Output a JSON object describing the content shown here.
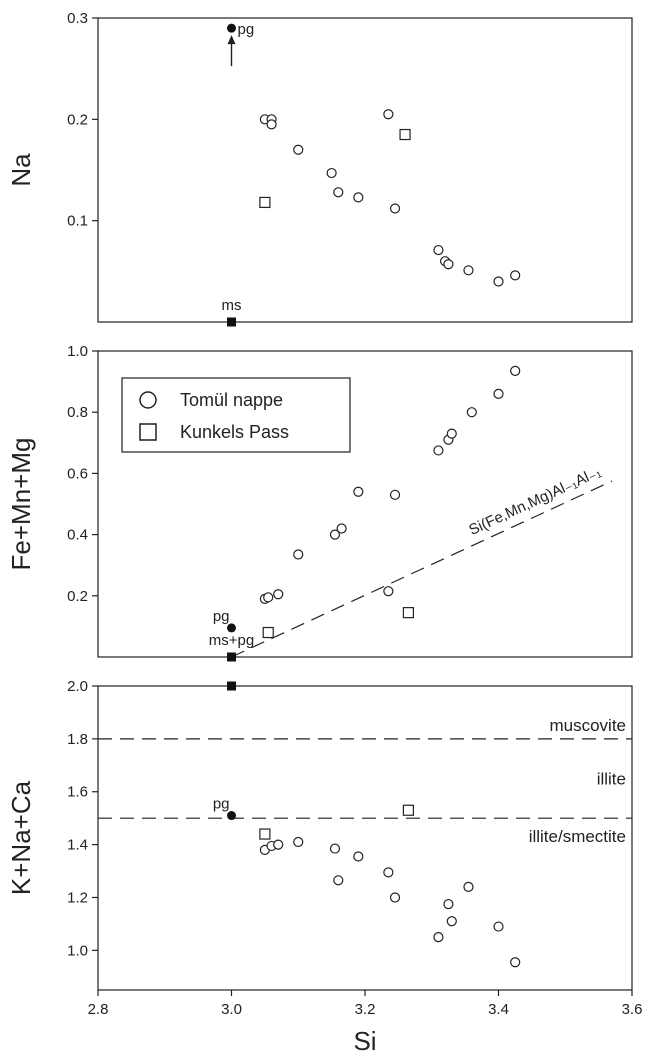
{
  "chart_data": [
    {
      "type": "scatter",
      "ylabel": "Na",
      "xlim": [
        2.8,
        3.6
      ],
      "ylim": [
        0.0,
        0.3
      ],
      "yticks": [
        "0.1",
        "0.2",
        "0.3"
      ],
      "series": [
        {
          "name": "Tomül nappe",
          "marker": "open-circle",
          "points": [
            [
              3.05,
              0.2
            ],
            [
              3.06,
              0.2
            ],
            [
              3.06,
              0.195
            ],
            [
              3.1,
              0.17
            ],
            [
              3.15,
              0.147
            ],
            [
              3.16,
              0.128
            ],
            [
              3.19,
              0.123
            ],
            [
              3.235,
              0.205
            ],
            [
              3.245,
              0.112
            ],
            [
              3.31,
              0.071
            ],
            [
              3.32,
              0.06
            ],
            [
              3.325,
              0.057
            ],
            [
              3.355,
              0.051
            ],
            [
              3.4,
              0.04
            ],
            [
              3.425,
              0.046
            ]
          ]
        },
        {
          "name": "Kunkels Pass",
          "marker": "open-square",
          "points": [
            [
              3.05,
              0.118
            ],
            [
              3.26,
              0.185
            ]
          ]
        }
      ],
      "refs": [
        {
          "label": "pg",
          "x": 3.0,
          "y": 0.29,
          "marker": "filled-circle",
          "arrow": true
        },
        {
          "label": "ms",
          "x": 3.0,
          "y": 0.0,
          "marker": "filled-square"
        }
      ]
    },
    {
      "type": "scatter",
      "ylabel": "Fe+Mn+Mg",
      "xlim": [
        2.8,
        3.6
      ],
      "ylim": [
        0.0,
        1.0
      ],
      "yticks": [
        "0.2",
        "0.4",
        "0.6",
        "0.8",
        "1.0"
      ],
      "series": [
        {
          "name": "Tomül nappe",
          "marker": "open-circle",
          "points": [
            [
              3.05,
              0.19
            ],
            [
              3.055,
              0.195
            ],
            [
              3.07,
              0.205
            ],
            [
              3.1,
              0.335
            ],
            [
              3.155,
              0.4
            ],
            [
              3.165,
              0.42
            ],
            [
              3.19,
              0.54
            ],
            [
              3.235,
              0.215
            ],
            [
              3.245,
              0.53
            ],
            [
              3.31,
              0.675
            ],
            [
              3.325,
              0.71
            ],
            [
              3.33,
              0.73
            ],
            [
              3.36,
              0.8
            ],
            [
              3.4,
              0.86
            ],
            [
              3.425,
              0.935
            ]
          ]
        },
        {
          "name": "Kunkels Pass",
          "marker": "open-square",
          "points": [
            [
              3.055,
              0.08
            ],
            [
              3.265,
              0.145
            ]
          ]
        }
      ],
      "refs": [
        {
          "label": "pg",
          "x": 3.0,
          "y": 0.095,
          "marker": "filled-circle"
        },
        {
          "label": "ms+pg",
          "x": 3.0,
          "y": 0.0,
          "marker": "filled-square"
        }
      ],
      "line": {
        "label": "Si(Fe,Mn,Mg)Al₋₁Al₋₁",
        "from": [
          3.0,
          0.0
        ],
        "to": [
          3.57,
          0.575
        ],
        "style": "dashed"
      }
    },
    {
      "type": "scatter",
      "ylabel": "K+Na+Ca",
      "xlabel": "Si",
      "xlim": [
        2.8,
        3.6
      ],
      "ylim": [
        0.85,
        2.0
      ],
      "xticks": [
        "2.8",
        "3.0",
        "3.2",
        "3.4",
        "3.6"
      ],
      "yticks": [
        "1.0",
        "1.2",
        "1.4",
        "1.6",
        "1.8",
        "2.0"
      ],
      "series": [
        {
          "name": "Tomül nappe",
          "marker": "open-circle",
          "points": [
            [
              3.05,
              1.38
            ],
            [
              3.06,
              1.395
            ],
            [
              3.07,
              1.4
            ],
            [
              3.1,
              1.41
            ],
            [
              3.155,
              1.385
            ],
            [
              3.16,
              1.265
            ],
            [
              3.19,
              1.355
            ],
            [
              3.235,
              1.295
            ],
            [
              3.245,
              1.2
            ],
            [
              3.31,
              1.05
            ],
            [
              3.325,
              1.175
            ],
            [
              3.33,
              1.11
            ],
            [
              3.355,
              1.24
            ],
            [
              3.4,
              1.09
            ],
            [
              3.425,
              0.955
            ]
          ]
        },
        {
          "name": "Kunkels Pass",
          "marker": "open-square",
          "points": [
            [
              3.05,
              1.44
            ],
            [
              3.265,
              1.53
            ]
          ]
        }
      ],
      "refs": [
        {
          "label": "pg",
          "x": 3.0,
          "y": 1.51,
          "marker": "filled-circle"
        },
        {
          "label": "",
          "x": 3.0,
          "y": 2.0,
          "marker": "filled-square"
        }
      ],
      "hlines": [
        {
          "y": 1.8,
          "label": "muscovite",
          "style": "dashed"
        },
        {
          "y": 1.5,
          "label": "illite/smectite",
          "style": "dashed"
        }
      ],
      "region_label": {
        "label": "illite",
        "y": 1.65
      }
    }
  ],
  "legend": {
    "entries": [
      {
        "label": "Tomül nappe",
        "marker": "open-circle"
      },
      {
        "label": "Kunkels Pass",
        "marker": "open-square"
      }
    ],
    "placement": "top-left of middle panel"
  }
}
